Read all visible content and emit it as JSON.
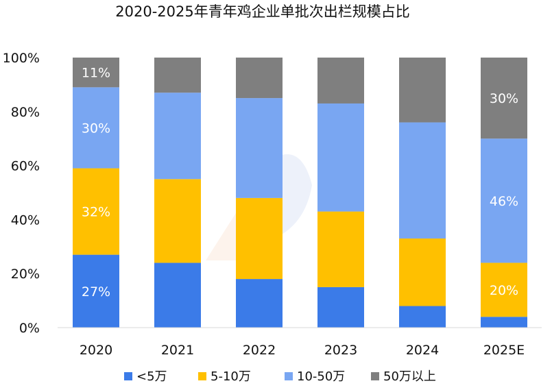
{
  "chart_data": {
    "type": "bar",
    "stacked": true,
    "title": "2020-2025年青年鸡企业单批次出栏规模占比",
    "categories": [
      "2020",
      "2021",
      "2022",
      "2023",
      "2024",
      "2025E"
    ],
    "series": [
      {
        "name": "<5万",
        "color": "#3B7BE8",
        "values": [
          27,
          24,
          18,
          15,
          8,
          4
        ]
      },
      {
        "name": "5-10万",
        "color": "#FFC000",
        "values": [
          32,
          31,
          30,
          28,
          25,
          20
        ]
      },
      {
        "name": "10-50万",
        "color": "#79A6F2",
        "values": [
          30,
          32,
          37,
          40,
          43,
          46
        ]
      },
      {
        "name": "50万以上",
        "color": "#7F7F7F",
        "values": [
          11,
          13,
          15,
          17,
          24,
          30
        ]
      }
    ],
    "data_labels": [
      {
        "series": 0,
        "category": 0,
        "text": "27%"
      },
      {
        "series": 1,
        "category": 0,
        "text": "32%"
      },
      {
        "series": 2,
        "category": 0,
        "text": "30%"
      },
      {
        "series": 3,
        "category": 0,
        "text": "11%"
      },
      {
        "series": 1,
        "category": 5,
        "text": "20%"
      },
      {
        "series": 2,
        "category": 5,
        "text": "46%"
      },
      {
        "series": 3,
        "category": 5,
        "text": "30%"
      }
    ],
    "yticks": [
      "0%",
      "20%",
      "40%",
      "60%",
      "80%",
      "100%"
    ],
    "ylim": [
      0,
      100
    ],
    "xlabel": "",
    "ylabel": "",
    "legend_position": "bottom"
  }
}
